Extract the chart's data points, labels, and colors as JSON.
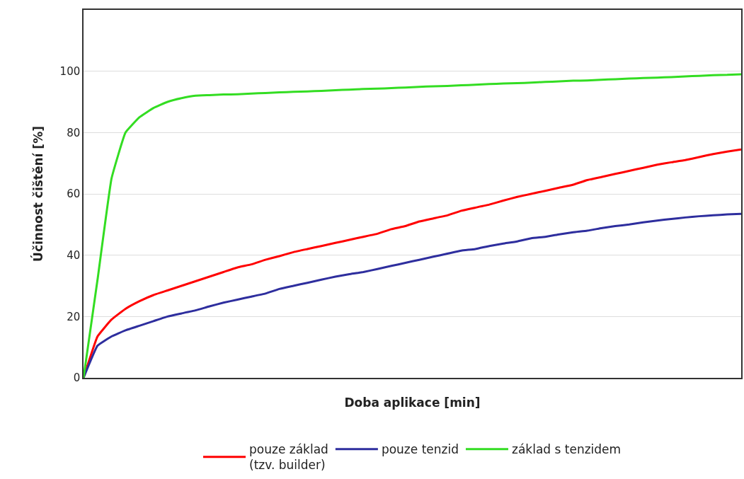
{
  "chart_data": {
    "type": "line",
    "xlabel": "Doba aplikace [min]",
    "ylabel": "Účinnost čištění [%]",
    "categories": [
      null,
      null,
      null,
      null,
      null,
      null,
      null,
      null,
      null,
      null,
      null,
      null,
      null,
      null,
      null,
      null,
      null,
      null,
      null,
      null,
      null,
      null,
      null,
      null,
      null,
      null,
      null,
      null,
      null,
      null,
      null,
      null,
      null,
      null,
      null,
      null,
      null,
      null,
      null,
      null,
      null,
      null,
      null,
      null,
      null,
      null,
      null,
      null
    ],
    "series": [
      {
        "name": "pouze základ\n(tzv. builder)",
        "color": "#ff0000",
        "values": [
          0,
          13.5,
          19,
          22.5,
          25,
          27,
          28.5,
          30,
          31.5,
          33,
          34.5,
          36,
          37,
          38.5,
          39.7,
          41,
          42,
          43,
          44,
          45,
          46,
          47,
          48.5,
          49.5,
          51,
          52,
          53,
          54.5,
          55.5,
          56.5,
          57.8,
          59,
          60,
          61,
          62,
          63,
          64.5,
          65.5,
          66.5,
          67.5,
          68.5,
          69.5,
          70.3,
          71,
          72,
          73,
          73.8,
          74.5
        ]
      },
      {
        "name": "pouze tenzid",
        "color": "#2e2e9e",
        "values": [
          0,
          10.5,
          13.5,
          15.5,
          17,
          18.5,
          20,
          21,
          22,
          23.3,
          24.5,
          25.5,
          26.5,
          27.5,
          29,
          30,
          31,
          32,
          33,
          33.8,
          34.5,
          35.5,
          36.5,
          37.5,
          38.5,
          39.5,
          40.5,
          41.5,
          42,
          43,
          43.8,
          44.5,
          45.5,
          46,
          46.8,
          47.5,
          48,
          48.8,
          49.5,
          50,
          50.7,
          51.3,
          51.8,
          52.3,
          52.7,
          53,
          53.3,
          53.5
        ]
      },
      {
        "name": "základ s tenzidem",
        "color": "#33dd22",
        "values": [
          0,
          32,
          65,
          80,
          85,
          88,
          90,
          91.2,
          92,
          92.2,
          92.4,
          92.5,
          92.7,
          92.9,
          93.1,
          93.3,
          93.4,
          93.6,
          93.8,
          94,
          94.2,
          94.3,
          94.5,
          94.7,
          94.9,
          95.1,
          95.2,
          95.4,
          95.6,
          95.8,
          96,
          96.1,
          96.3,
          96.5,
          96.7,
          96.9,
          97,
          97.2,
          97.4,
          97.6,
          97.8,
          97.9,
          98.1,
          98.3,
          98.5,
          98.7,
          98.8,
          99
        ]
      }
    ],
    "ylim": [
      0,
      120
    ],
    "yticks": [
      0,
      20,
      40,
      60,
      80,
      100
    ],
    "grid": "y",
    "legend": "bottom",
    "marker": "none",
    "line_style": "solid"
  }
}
